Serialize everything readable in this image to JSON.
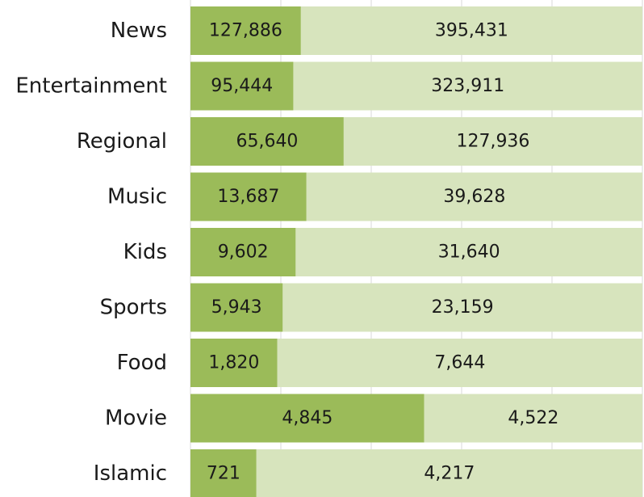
{
  "chart_data": {
    "type": "bar",
    "orientation": "horizontal",
    "stacked": "percent",
    "categories": [
      "News",
      "Entertainment",
      "Regional",
      "Music",
      "Kids",
      "Sports",
      "Food",
      "Movie",
      "Islamic"
    ],
    "series": [
      {
        "values": [
          127886,
          95444,
          65640,
          13687,
          9602,
          5943,
          1820,
          4845,
          721
        ],
        "labels": [
          "127,886",
          "95,444",
          "65,640",
          "13,687",
          "9,602",
          "5,943",
          "1,820",
          "4,845",
          "721"
        ],
        "color": "#9bbb59"
      },
      {
        "values": [
          395431,
          323911,
          127936,
          39628,
          31640,
          23159,
          7644,
          4522,
          4217
        ],
        "labels": [
          "395,431",
          "323,911",
          "127,936",
          "39,628",
          "31,640",
          "23,159",
          "7,644",
          "4,522",
          "4,217"
        ],
        "color": "#d7e4bd"
      }
    ],
    "title": "",
    "xlabel": "",
    "ylabel": "",
    "xlim": [
      0,
      1
    ],
    "grid": true,
    "gridline_color": "#d9d9d9",
    "legend": "none"
  }
}
